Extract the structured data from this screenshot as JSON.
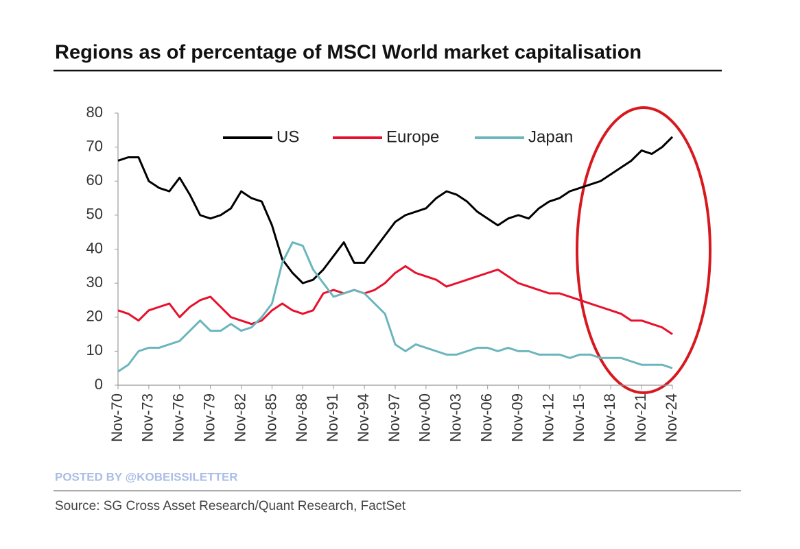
{
  "chart_data": {
    "type": "line",
    "title": "Regions as of percentage of MSCI World market capitalisation",
    "watermark": "POSTED BY @KOBEISSILETTER",
    "source": "Source: SG Cross Asset Research/Quant Research, FactSet",
    "categories": [
      "Nov-70",
      null,
      null,
      "Nov-73",
      null,
      null,
      "Nov-76",
      null,
      null,
      "Nov-79",
      null,
      null,
      "Nov-82",
      null,
      null,
      "Nov-85",
      null,
      null,
      "Nov-88",
      null,
      null,
      "Nov-91",
      null,
      null,
      "Nov-94",
      null,
      null,
      "Nov-97",
      null,
      null,
      "Nov-00",
      null,
      null,
      "Nov-03",
      null,
      null,
      "Nov-06",
      null,
      null,
      "Nov-09",
      null,
      null,
      "Nov-12",
      null,
      null,
      "Nov-15",
      null,
      null,
      "Nov-18",
      null,
      null,
      "Nov-21",
      null,
      null,
      "Nov-24"
    ],
    "series": [
      {
        "name": "US",
        "color": "#000000",
        "values": [
          66,
          67,
          67,
          60,
          58,
          57,
          61,
          56,
          50,
          49,
          50,
          52,
          57,
          55,
          54,
          47,
          37,
          33,
          30,
          31,
          34,
          38,
          42,
          36,
          36,
          40,
          44,
          48,
          50,
          51,
          52,
          55,
          57,
          56,
          54,
          51,
          49,
          47,
          49,
          50,
          49,
          52,
          54,
          55,
          57,
          58,
          59,
          60,
          62,
          64,
          66,
          69,
          68,
          70,
          73
        ]
      },
      {
        "name": "Europe",
        "color": "#e8102c",
        "values": [
          22,
          21,
          19,
          22,
          23,
          24,
          20,
          23,
          25,
          26,
          23,
          20,
          19,
          18,
          19,
          22,
          24,
          22,
          21,
          22,
          27,
          28,
          27,
          28,
          27,
          28,
          30,
          33,
          35,
          33,
          32,
          31,
          29,
          30,
          31,
          32,
          33,
          34,
          32,
          30,
          29,
          28,
          27,
          27,
          26,
          25,
          24,
          23,
          22,
          21,
          19,
          19,
          18,
          17,
          15
        ]
      },
      {
        "name": "Japan",
        "color": "#6bb5bd",
        "values": [
          4,
          6,
          10,
          11,
          11,
          12,
          13,
          16,
          19,
          16,
          16,
          18,
          16,
          17,
          20,
          24,
          36,
          42,
          41,
          34,
          30,
          26,
          27,
          28,
          27,
          24,
          21,
          12,
          10,
          12,
          11,
          10,
          9,
          9,
          10,
          11,
          11,
          10,
          11,
          10,
          10,
          9,
          9,
          9,
          8,
          9,
          9,
          8,
          8,
          8,
          7,
          6,
          6,
          6,
          5
        ]
      }
    ],
    "ylim": [
      0,
      80
    ],
    "yticks": [
      0,
      10,
      20,
      30,
      40,
      50,
      60,
      70,
      80
    ],
    "grid": false
  }
}
